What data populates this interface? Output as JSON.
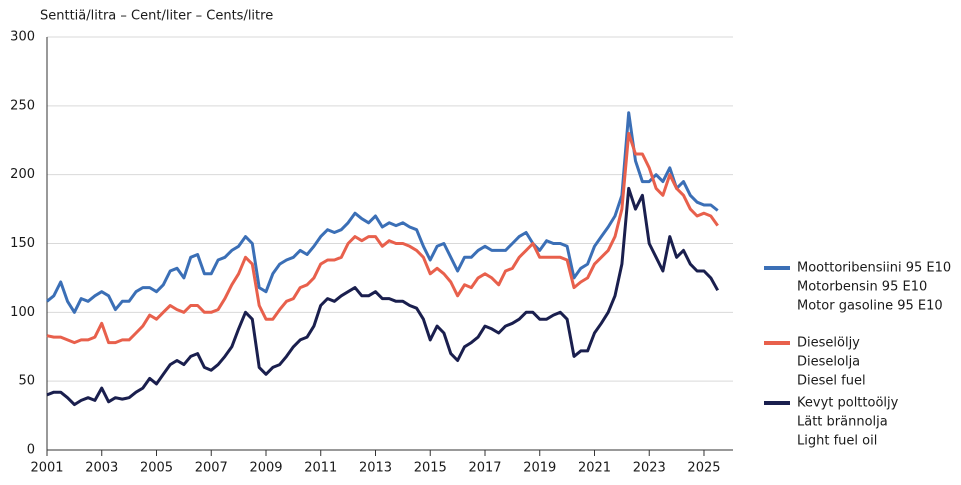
{
  "chart_data": {
    "type": "line",
    "axis_label": "Senttiä/litra – Cent/liter – Cents/litre",
    "x": [
      2001,
      2001.25,
      2001.5,
      2001.75,
      2002,
      2002.25,
      2002.5,
      2002.75,
      2003,
      2003.25,
      2003.5,
      2003.75,
      2004,
      2004.25,
      2004.5,
      2004.75,
      2005,
      2005.25,
      2005.5,
      2005.75,
      2006,
      2006.25,
      2006.5,
      2006.75,
      2007,
      2007.25,
      2007.5,
      2007.75,
      2008,
      2008.25,
      2008.5,
      2008.75,
      2009,
      2009.25,
      2009.5,
      2009.75,
      2010,
      2010.25,
      2010.5,
      2010.75,
      2011,
      2011.25,
      2011.5,
      2011.75,
      2012,
      2012.25,
      2012.5,
      2012.75,
      2013,
      2013.25,
      2013.5,
      2013.75,
      2014,
      2014.25,
      2014.5,
      2014.75,
      2015,
      2015.25,
      2015.5,
      2015.75,
      2016,
      2016.25,
      2016.5,
      2016.75,
      2017,
      2017.25,
      2017.5,
      2017.75,
      2018,
      2018.25,
      2018.5,
      2018.75,
      2019,
      2019.25,
      2019.5,
      2019.75,
      2020,
      2020.25,
      2020.5,
      2020.75,
      2021,
      2021.25,
      2021.5,
      2021.75,
      2022,
      2022.25,
      2022.5,
      2022.75,
      2023,
      2023.25,
      2023.5,
      2023.75,
      2024,
      2024.25,
      2024.5,
      2024.75,
      2025,
      2025.25,
      2025.5
    ],
    "series": [
      {
        "name": [
          "Moottoribensiini 95 E10",
          "Motorbensin 95 E10",
          "Motor gasoline 95 E10"
        ],
        "color": "#3b6fb6",
        "values": [
          108,
          112,
          122,
          108,
          100,
          110,
          108,
          112,
          115,
          112,
          102,
          108,
          108,
          115,
          118,
          118,
          115,
          120,
          130,
          132,
          125,
          140,
          142,
          128,
          128,
          138,
          140,
          145,
          148,
          155,
          150,
          118,
          115,
          128,
          135,
          138,
          140,
          145,
          142,
          148,
          155,
          160,
          158,
          160,
          165,
          172,
          168,
          165,
          170,
          162,
          165,
          163,
          165,
          162,
          160,
          148,
          138,
          148,
          150,
          140,
          130,
          140,
          140,
          145,
          148,
          145,
          145,
          145,
          150,
          155,
          158,
          150,
          145,
          152,
          150,
          150,
          148,
          125,
          132,
          135,
          148,
          155,
          162,
          170,
          185,
          245,
          210,
          195,
          195,
          200,
          195,
          205,
          190,
          195,
          185,
          180,
          178,
          178,
          174
        ]
      },
      {
        "name": [
          "Dieselöljy",
          "Dieselolja",
          "Diesel fuel"
        ],
        "color": "#e8604c",
        "values": [
          83,
          82,
          82,
          80,
          78,
          80,
          80,
          82,
          92,
          78,
          78,
          80,
          80,
          85,
          90,
          98,
          95,
          100,
          105,
          102,
          100,
          105,
          105,
          100,
          100,
          102,
          110,
          120,
          128,
          140,
          135,
          105,
          95,
          95,
          102,
          108,
          110,
          118,
          120,
          125,
          135,
          138,
          138,
          140,
          150,
          155,
          152,
          155,
          155,
          148,
          152,
          150,
          150,
          148,
          145,
          140,
          128,
          132,
          128,
          122,
          112,
          120,
          118,
          125,
          128,
          125,
          120,
          130,
          132,
          140,
          145,
          150,
          140,
          140,
          140,
          140,
          138,
          118,
          122,
          125,
          135,
          140,
          145,
          155,
          175,
          230,
          215,
          215,
          205,
          190,
          185,
          200,
          190,
          185,
          175,
          170,
          172,
          170,
          163
        ]
      },
      {
        "name": [
          "Kevyt polttoöljy",
          "Lätt brännolja",
          "Light fuel oil"
        ],
        "color": "#1a1f4e",
        "values": [
          40,
          42,
          42,
          38,
          33,
          36,
          38,
          36,
          45,
          35,
          38,
          37,
          38,
          42,
          45,
          52,
          48,
          55,
          62,
          65,
          62,
          68,
          70,
          60,
          58,
          62,
          68,
          75,
          88,
          100,
          95,
          60,
          55,
          60,
          62,
          68,
          75,
          80,
          82,
          90,
          105,
          110,
          108,
          112,
          115,
          118,
          112,
          112,
          115,
          110,
          110,
          108,
          108,
          105,
          103,
          95,
          80,
          90,
          85,
          70,
          65,
          75,
          78,
          82,
          90,
          88,
          85,
          90,
          92,
          95,
          100,
          100,
          95,
          95,
          98,
          100,
          95,
          68,
          72,
          72,
          85,
          92,
          100,
          112,
          135,
          190,
          175,
          185,
          150,
          140,
          130,
          155,
          140,
          145,
          135,
          130,
          130,
          125,
          116
        ]
      }
    ],
    "xlim": [
      2001,
      2026.06
    ],
    "xticks": [
      2001,
      2003,
      2005,
      2007,
      2009,
      2011,
      2013,
      2015,
      2017,
      2019,
      2021,
      2023,
      2025
    ],
    "ylim": [
      0,
      300
    ],
    "yticks": [
      0,
      50,
      100,
      150,
      200,
      250,
      300
    ],
    "grid": true,
    "legend": "right"
  }
}
